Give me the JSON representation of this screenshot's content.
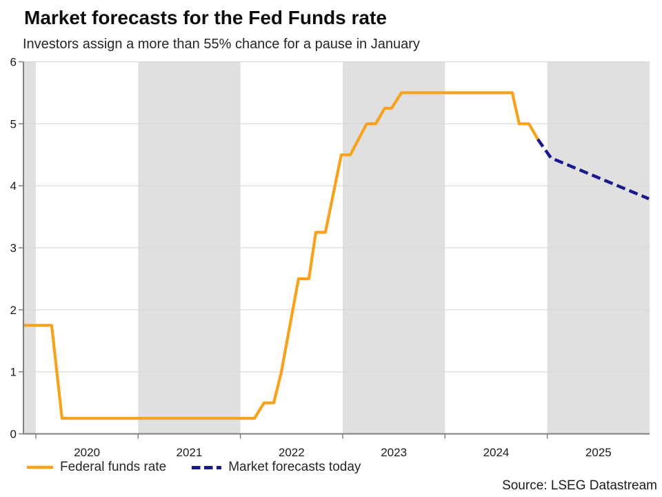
{
  "header": {
    "title": "Market forecasts for the Fed Funds rate",
    "subtitle": "Investors assign a more than 55% chance for a pause in January"
  },
  "legend": {
    "items": [
      {
        "label": "Federal funds rate",
        "style": "solid",
        "color": "#F9A11B"
      },
      {
        "label": "Market forecasts today",
        "style": "dashed",
        "color": "#1A1A8C"
      }
    ]
  },
  "source": "Source: LSEG Datastream",
  "chart_data": {
    "type": "line",
    "title": "Market forecasts for the Fed Funds rate",
    "subtitle": "Investors assign a more than 55% chance for a pause in January",
    "xlabel": "",
    "ylabel": "",
    "x_axis": {
      "domain": [
        2019.879,
        2026.0
      ],
      "ticks": [
        {
          "value": 2020,
          "label": "2020"
        },
        {
          "value": 2021,
          "label": "2021"
        },
        {
          "value": 2022,
          "label": "2022"
        },
        {
          "value": 2023,
          "label": "2023"
        },
        {
          "value": 2024,
          "label": "2024"
        },
        {
          "value": 2025,
          "label": "2025"
        }
      ],
      "tick_label_offset": 0.5
    },
    "y_axis": {
      "domain": [
        0,
        6
      ],
      "ticks": [
        {
          "value": 0,
          "label": "0"
        },
        {
          "value": 1,
          "label": "1"
        },
        {
          "value": 2,
          "label": "2"
        },
        {
          "value": 3,
          "label": "3"
        },
        {
          "value": 4,
          "label": "4"
        },
        {
          "value": 5,
          "label": "5"
        },
        {
          "value": 6,
          "label": "6"
        }
      ]
    },
    "bands": [
      [
        2019.879,
        2020
      ],
      [
        2021,
        2022
      ],
      [
        2023,
        2024
      ],
      [
        2025,
        2026
      ]
    ],
    "band_color": "#E0E0E0",
    "grid_color": "#D9D9D9",
    "axis_color": "#808080",
    "legend_position": "bottom-left",
    "series": [
      {
        "name": "Federal funds rate",
        "color": "#F9A11B",
        "dash": null,
        "width": 4.2,
        "points": [
          [
            2019.879,
            1.75
          ],
          [
            2020.155,
            1.75
          ],
          [
            2020.256,
            0.25
          ],
          [
            2022.137,
            0.25
          ],
          [
            2022.231,
            0.5
          ],
          [
            2022.326,
            0.5
          ],
          [
            2022.4,
            1.0
          ],
          [
            2022.568,
            2.5
          ],
          [
            2022.669,
            2.5
          ],
          [
            2022.737,
            3.25
          ],
          [
            2022.831,
            3.25
          ],
          [
            2022.986,
            4.5
          ],
          [
            2023.074,
            4.5
          ],
          [
            2023.235,
            5.0
          ],
          [
            2023.323,
            5.0
          ],
          [
            2023.41,
            5.25
          ],
          [
            2023.478,
            5.25
          ],
          [
            2023.573,
            5.5
          ],
          [
            2024.658,
            5.5
          ],
          [
            2024.725,
            5.0
          ],
          [
            2024.82,
            5.0
          ],
          [
            2024.907,
            4.75
          ]
        ]
      },
      {
        "name": "Market forecasts today",
        "color": "#1A1A8C",
        "dash": [
          13,
          6.5
        ],
        "width": 4.5,
        "points": [
          [
            2024.907,
            4.75
          ],
          [
            2025.035,
            4.45
          ],
          [
            2025.993,
            3.79
          ]
        ]
      }
    ]
  }
}
